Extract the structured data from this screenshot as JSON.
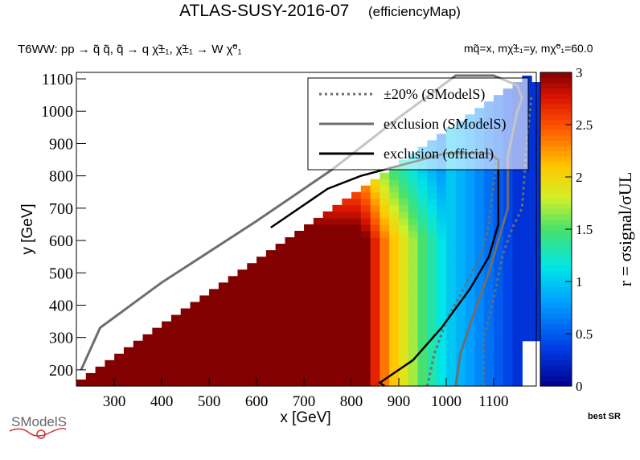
{
  "header": {
    "title": "ATLAS-SUSY-2016-07",
    "title_suffix": "(efficiencyMap)",
    "process": "T6WW: pp  → q̃ q̃, q̃ → q χ̃±₁, χ̃±₁ → W χ̃⁰₁",
    "masses": "mq̃=x, mχ̃±₁=y, mχ̃⁰₁=60.0"
  },
  "footer": {
    "best_sr": "best SR",
    "logo_text": "SModelS"
  },
  "colors": {
    "excl_official": "#000000",
    "excl_smodels": "#6e6e6e",
    "band": "#6e6e6e"
  },
  "chart_data": {
    "type": "heatmap",
    "xlabel": "x [GeV]",
    "ylabel": "y [GeV]",
    "zlabel": "r = σsignal/σUL",
    "xlim": [
      220,
      1190
    ],
    "ylim": [
      150,
      1120
    ],
    "zlim": [
      0,
      3
    ],
    "x_ticks": [
      300,
      400,
      500,
      600,
      700,
      800,
      900,
      1000,
      1100
    ],
    "y_ticks": [
      200,
      300,
      400,
      500,
      600,
      700,
      800,
      900,
      1000,
      1100
    ],
    "z_ticks": [
      "0",
      "0.5",
      "1",
      "1.5",
      "2",
      "2.5",
      "3"
    ],
    "colormap": "rainbow (blue → cyan → yellow → red → dark red)",
    "legend": {
      "position": "top-right",
      "entries": [
        {
          "label": "±20% (SModelS)",
          "style": "dotted",
          "color": "#6e6e6e"
        },
        {
          "label": "exclusion (SModelS)",
          "style": "solid",
          "color": "#6e6e6e"
        },
        {
          "label": "exclusion (official)",
          "style": "solid",
          "color": "#000000"
        }
      ]
    },
    "region": "triangle: points with y < x - 60 above y = 150 (edge along the diagonal)",
    "model": {
      "description": "r falls with x; saturated (r ≥ 3) for x ≤ ~820 GeV, ~1 near x = 1000 GeV, ~0.3 at x = 1150 GeV",
      "anchors_x_r": [
        [
          820,
          3.2
        ],
        [
          880,
          2.2
        ],
        [
          950,
          1.5
        ],
        [
          1000,
          1.05
        ],
        [
          1050,
          0.8
        ],
        [
          1100,
          0.55
        ],
        [
          1150,
          0.3
        ]
      ]
    },
    "exclusion_official": [
      [
        870,
        150
      ],
      [
        860,
        160
      ],
      [
        880,
        180
      ],
      [
        930,
        230
      ],
      [
        990,
        330
      ],
      [
        1050,
        450
      ],
      [
        1090,
        550
      ],
      [
        1110,
        650
      ],
      [
        1110,
        850
      ],
      [
        1090,
        870
      ],
      [
        1000,
        870
      ],
      [
        820,
        800
      ],
      [
        750,
        760
      ],
      [
        630,
        640
      ]
    ],
    "exclusion_smodels": [
      [
        1020,
        150
      ],
      [
        1030,
        250
      ],
      [
        1060,
        380
      ],
      [
        1090,
        500
      ],
      [
        1110,
        600
      ],
      [
        1130,
        700
      ],
      [
        1130,
        860
      ],
      [
        1150,
        1000
      ],
      [
        1160,
        1040
      ],
      [
        1150,
        1080
      ],
      [
        1100,
        1110
      ],
      [
        1020,
        1110
      ],
      [
        900,
        980
      ],
      [
        760,
        820
      ],
      [
        600,
        660
      ],
      [
        400,
        470
      ],
      [
        270,
        330
      ],
      [
        230,
        200
      ]
    ],
    "band_minus20": [
      [
        960,
        150
      ],
      [
        975,
        250
      ],
      [
        1000,
        350
      ],
      [
        1040,
        460
      ],
      [
        1075,
        560
      ],
      [
        1090,
        650
      ],
      [
        1100,
        780
      ],
      [
        1110,
        860
      ]
    ],
    "band_plus20": [
      [
        1080,
        150
      ],
      [
        1080,
        300
      ],
      [
        1100,
        420
      ],
      [
        1120,
        560
      ],
      [
        1140,
        640
      ],
      [
        1160,
        700
      ],
      [
        1170,
        900
      ],
      [
        1180,
        1050
      ]
    ]
  }
}
